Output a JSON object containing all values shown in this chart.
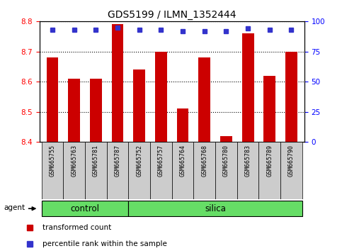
{
  "title": "GDS5199 / ILMN_1352444",
  "samples": [
    "GSM665755",
    "GSM665763",
    "GSM665781",
    "GSM665787",
    "GSM665752",
    "GSM665757",
    "GSM665764",
    "GSM665768",
    "GSM665780",
    "GSM665783",
    "GSM665789",
    "GSM665790"
  ],
  "bar_values": [
    8.68,
    8.61,
    8.61,
    8.79,
    8.64,
    8.7,
    8.51,
    8.68,
    8.42,
    8.76,
    8.62,
    8.7
  ],
  "percentile_values": [
    93,
    93,
    93,
    95,
    93,
    93,
    92,
    92,
    92,
    94,
    93,
    93
  ],
  "control_count": 4,
  "silica_count": 8,
  "ylim_left": [
    8.4,
    8.8
  ],
  "ylim_right": [
    0,
    100
  ],
  "yticks_left": [
    8.4,
    8.5,
    8.6,
    8.7,
    8.8
  ],
  "yticks_right": [
    0,
    25,
    50,
    75,
    100
  ],
  "bar_color": "#cc0000",
  "dot_color": "#3333cc",
  "control_color": "#66dd66",
  "silica_color": "#66dd66",
  "label_bg_color": "#cccccc",
  "agent_label": "agent",
  "control_label": "control",
  "silica_label": "silica",
  "legend_bar": "transformed count",
  "legend_dot": "percentile rank within the sample"
}
